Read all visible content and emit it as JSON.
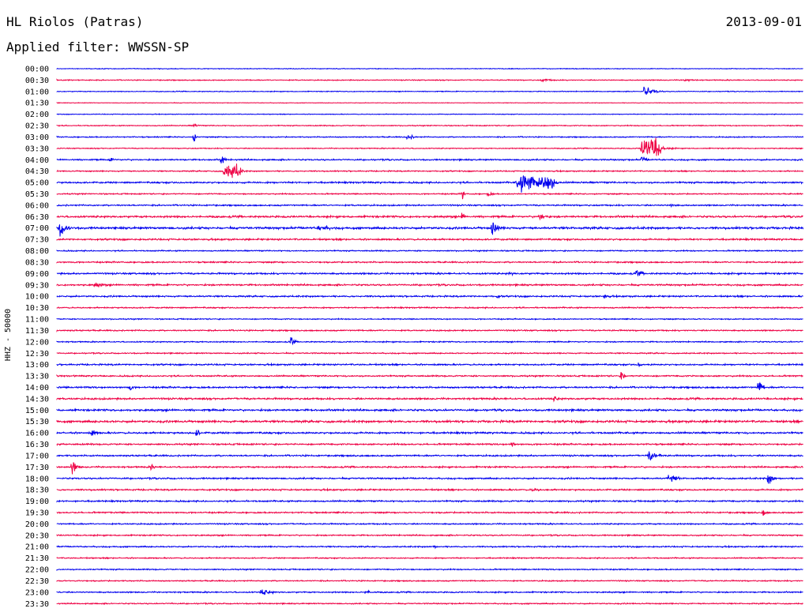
{
  "header": {
    "station": "HL Riolos (Patras)",
    "date": "2013-09-01",
    "filter_label": "Applied filter: WWSSN-SP"
  },
  "colors": {
    "blue_trace": "#0000ee",
    "red_trace": "#ee0044",
    "background": "#ffffff",
    "text": "#000000"
  },
  "chart_data": {
    "type": "line",
    "title": "HL Riolos (Patras)",
    "subtitle": "Applied filter: WWSSN-SP",
    "ylabel": "HHZ - 50000",
    "rows": [
      "00:00",
      "00:30",
      "01:00",
      "01:30",
      "02:00",
      "02:30",
      "03:00",
      "03:30",
      "04:00",
      "04:30",
      "05:00",
      "05:30",
      "06:00",
      "06:30",
      "07:00",
      "07:30",
      "08:00",
      "08:30",
      "09:00",
      "09:30",
      "10:00",
      "10:30",
      "11:00",
      "11:30",
      "12:00",
      "12:30",
      "13:00",
      "13:30",
      "14:00",
      "14:30",
      "15:00",
      "15:30",
      "16:00",
      "16:30",
      "17:00",
      "17:30",
      "18:00",
      "18:30",
      "19:00",
      "19:30",
      "20:00",
      "20:30",
      "21:00",
      "21:30",
      "22:00",
      "22:30",
      "23:00",
      "23:30"
    ],
    "x_range_minutes": [
      0,
      30
    ],
    "series_colors": [
      "blue",
      "red"
    ],
    "grid": false,
    "noise_level": [
      0.6,
      0.8,
      0.7,
      0.5,
      0.6,
      0.8,
      0.9,
      0.8,
      1.2,
      1.0,
      1.4,
      1.0,
      1.2,
      1.6,
      1.8,
      1.4,
      1.0,
      1.2,
      1.4,
      1.4,
      1.3,
      1.1,
      0.9,
      1.1,
      1.0,
      1.0,
      1.3,
      1.2,
      1.4,
      1.5,
      1.6,
      1.8,
      1.5,
      1.3,
      1.3,
      1.3,
      1.3,
      1.3,
      1.3,
      1.2,
      1.1,
      1.1,
      1.1,
      1.0,
      1.0,
      1.0,
      1.1,
      1.0
    ],
    "events": [
      {
        "row": "00:30",
        "minute": 19.5,
        "amplitude": 3,
        "duration": 0.8
      },
      {
        "row": "00:30",
        "minute": 25.2,
        "amplitude": 3,
        "duration": 0.8
      },
      {
        "row": "01:00",
        "minute": 23.6,
        "amplitude": 10,
        "duration": 0.6
      },
      {
        "row": "02:30",
        "minute": 5.5,
        "amplitude": 4,
        "duration": 0.3
      },
      {
        "row": "03:00",
        "minute": 5.5,
        "amplitude": 14,
        "duration": 0.1
      },
      {
        "row": "03:00",
        "minute": 14.1,
        "amplitude": 6,
        "duration": 0.4
      },
      {
        "row": "03:30",
        "minute": 23.5,
        "amplitude": 18,
        "duration": 0.8,
        "saturated": true
      },
      {
        "row": "04:00",
        "minute": 6.6,
        "amplitude": 12,
        "duration": 0.2
      },
      {
        "row": "04:00",
        "minute": 2.1,
        "amplitude": 4,
        "duration": 0.5
      },
      {
        "row": "04:00",
        "minute": 23.5,
        "amplitude": 8,
        "duration": 0.3
      },
      {
        "row": "04:30",
        "minute": 6.7,
        "amplitude": 12,
        "duration": 0.7,
        "saturated": true
      },
      {
        "row": "05:00",
        "minute": 18.5,
        "amplitude": 14,
        "duration": 1.5,
        "saturated": true
      },
      {
        "row": "05:30",
        "minute": 17.3,
        "amplitude": 4,
        "duration": 0.5
      },
      {
        "row": "05:30",
        "minute": 16.3,
        "amplitude": 12,
        "duration": 0.1
      },
      {
        "row": "06:00",
        "minute": 24.7,
        "amplitude": 4,
        "duration": 0.4
      },
      {
        "row": "06:30",
        "minute": 16.3,
        "amplitude": 16,
        "duration": 0.1
      },
      {
        "row": "06:30",
        "minute": 19.4,
        "amplitude": 8,
        "duration": 0.5
      },
      {
        "row": "07:00",
        "minute": 0.1,
        "amplitude": 18,
        "duration": 0.4
      },
      {
        "row": "07:00",
        "minute": 17.5,
        "amplitude": 18,
        "duration": 0.3
      },
      {
        "row": "07:00",
        "minute": 10.5,
        "amplitude": 6,
        "duration": 0.9
      },
      {
        "row": "09:00",
        "minute": 18.2,
        "amplitude": 4,
        "duration": 0.4
      },
      {
        "row": "09:00",
        "minute": 23.3,
        "amplitude": 6,
        "duration": 0.5
      },
      {
        "row": "09:30",
        "minute": 1.5,
        "amplitude": 5,
        "duration": 0.7
      },
      {
        "row": "10:00",
        "minute": 22.0,
        "amplitude": 6,
        "duration": 0.3
      },
      {
        "row": "10:00",
        "minute": 17.7,
        "amplitude": 5,
        "duration": 0.3
      },
      {
        "row": "12:00",
        "minute": 9.4,
        "amplitude": 10,
        "duration": 0.2
      },
      {
        "row": "13:00",
        "minute": 23.4,
        "amplitude": 6,
        "duration": 0.2
      },
      {
        "row": "13:30",
        "minute": 22.7,
        "amplitude": 10,
        "duration": 0.2
      },
      {
        "row": "14:00",
        "minute": 2.9,
        "amplitude": 8,
        "duration": 0.2
      },
      {
        "row": "14:00",
        "minute": 28.2,
        "amplitude": 14,
        "duration": 0.3
      },
      {
        "row": "14:30",
        "minute": 20.0,
        "amplitude": 5,
        "duration": 0.4
      },
      {
        "row": "16:00",
        "minute": 1.4,
        "amplitude": 8,
        "duration": 0.3
      },
      {
        "row": "16:00",
        "minute": 5.6,
        "amplitude": 10,
        "duration": 0.2
      },
      {
        "row": "16:30",
        "minute": 18.3,
        "amplitude": 8,
        "duration": 0.2
      },
      {
        "row": "17:00",
        "minute": 23.8,
        "amplitude": 10,
        "duration": 0.6
      },
      {
        "row": "17:30",
        "minute": 0.6,
        "amplitude": 14,
        "duration": 0.3
      },
      {
        "row": "17:30",
        "minute": 3.8,
        "amplitude": 6,
        "duration": 0.2
      },
      {
        "row": "18:00",
        "minute": 24.6,
        "amplitude": 10,
        "duration": 0.5
      },
      {
        "row": "18:00",
        "minute": 28.6,
        "amplitude": 16,
        "duration": 0.3
      },
      {
        "row": "18:30",
        "minute": 19.1,
        "amplitude": 4,
        "duration": 0.6
      },
      {
        "row": "19:30",
        "minute": 28.4,
        "amplitude": 8,
        "duration": 0.2
      },
      {
        "row": "21:00",
        "minute": 15.1,
        "amplitude": 3,
        "duration": 0.5
      },
      {
        "row": "23:00",
        "minute": 8.2,
        "amplitude": 7,
        "duration": 0.6
      },
      {
        "row": "23:00",
        "minute": 12.4,
        "amplitude": 4,
        "duration": 0.6
      },
      {
        "row": "23:30",
        "minute": 4.6,
        "amplitude": 2,
        "duration": 0.5
      }
    ]
  }
}
